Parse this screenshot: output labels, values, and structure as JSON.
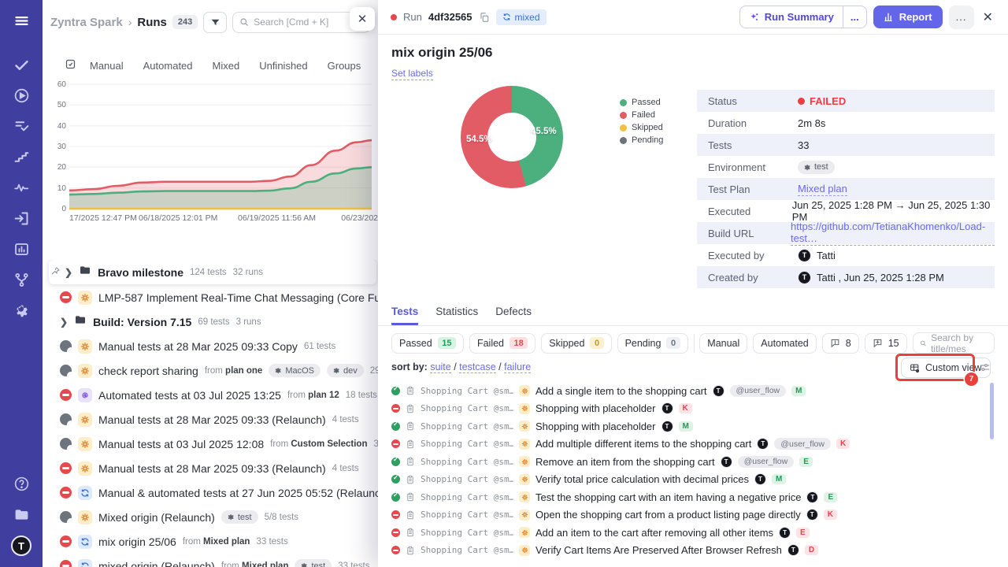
{
  "sidebar": {
    "icons": [
      "menu-icon",
      "checks-icon",
      "run-play-icon",
      "test-list-icon",
      "steps-icon",
      "activity-icon",
      "sign-in-icon",
      "reports-icon",
      "branch-icon",
      "gear-icon"
    ],
    "bottom_icons": [
      "help-icon",
      "folder-icon"
    ],
    "avatar_letter": "T"
  },
  "left_panel": {
    "breadcrumb": {
      "app": "Zyntra Spark",
      "separator": "›",
      "page": "Runs",
      "count": "243"
    },
    "search": {
      "placeholder": "Search [Cmd + K]"
    },
    "close_label": "✕",
    "tabs": [
      "Manual",
      "Automated",
      "Mixed",
      "Unfinished",
      "Groups"
    ],
    "tab_badge": "tes",
    "chart_data": {
      "type": "area",
      "title": "",
      "xlabel": "",
      "ylabel": "",
      "ylim": [
        0,
        62
      ],
      "y_ticks": [
        0,
        10,
        20,
        30,
        40,
        50,
        60
      ],
      "x_ticks": [
        "17/2025 12:47 PM",
        "06/18/2025 12:01 PM",
        "06/19/2025 11:56 AM",
        "06/23/202"
      ],
      "grid": true,
      "series": [
        {
          "name": "total-failed",
          "color": "#e25c66",
          "fill": "rgba(226,92,102,0.22)",
          "points": [
            [
              0,
              8.8
            ],
            [
              0.08,
              9.4
            ],
            [
              0.16,
              11
            ],
            [
              0.24,
              12.6
            ],
            [
              0.32,
              13
            ],
            [
              0.42,
              13
            ],
            [
              0.52,
              13
            ],
            [
              0.6,
              13
            ],
            [
              0.66,
              13.4
            ],
            [
              0.73,
              15.5
            ],
            [
              0.8,
              21
            ],
            [
              0.88,
              28
            ],
            [
              0.95,
              32
            ],
            [
              1,
              33
            ]
          ]
        },
        {
          "name": "passed",
          "color": "#4caf7d",
          "fill": "rgba(76,175,125,0.25)",
          "points": [
            [
              0,
              6.8
            ],
            [
              0.08,
              7.1
            ],
            [
              0.16,
              7.7
            ],
            [
              0.24,
              8.3
            ],
            [
              0.32,
              8.5
            ],
            [
              0.42,
              8.5
            ],
            [
              0.52,
              8.5
            ],
            [
              0.6,
              8.5
            ],
            [
              0.66,
              8.7
            ],
            [
              0.73,
              9.8
            ],
            [
              0.8,
              13
            ],
            [
              0.88,
              17
            ],
            [
              0.95,
              19.4
            ],
            [
              1,
              20
            ]
          ]
        },
        {
          "name": "skipped",
          "color": "#f0c042",
          "fill": "none",
          "points": [
            [
              0,
              0
            ],
            [
              1,
              0
            ]
          ]
        }
      ]
    },
    "runs": [
      {
        "folder": true,
        "pinned": true,
        "card": true,
        "title": "Bravo milestone",
        "meta": [
          "124 tests",
          "32 runs"
        ]
      },
      {
        "status": "failed",
        "type": "manual",
        "title": "LMP-587 Implement Real-Time Chat Messaging (Core Functionality)"
      },
      {
        "folder": true,
        "title": "Build: Version 7.15",
        "meta": [
          "69 tests",
          "3 runs"
        ]
      },
      {
        "status": "aborted",
        "type": "manual",
        "title": "Manual tests at 28 Mar 2025 09:33 Copy",
        "tests": "61 tests"
      },
      {
        "status": "aborted",
        "type": "manual",
        "title": "check report sharing",
        "from": "plan one",
        "badges": [
          "MacOS",
          "dev"
        ],
        "tests": "29 tests"
      },
      {
        "status": "failed",
        "type": "automated",
        "title": "Automated tests at 03 Jul 2025 13:25",
        "from": "plan 12",
        "tests": "18 tests"
      },
      {
        "status": "aborted",
        "type": "manual",
        "title": "Manual tests at 28 Mar 2025 09:33 (Relaunch)",
        "tests": "4 tests"
      },
      {
        "status": "aborted",
        "type": "manual",
        "title": "Manual tests at 03 Jul 2025 12:08",
        "from": "Custom Selection",
        "tests": "3/3 tests"
      },
      {
        "status": "failed",
        "type": "manual",
        "title": "Manual tests at 28 Mar 2025 09:33 (Relaunch)",
        "tests": "4 tests"
      },
      {
        "status": "failed",
        "type": "mixed",
        "title": "Manual & automated tests at 27 Jun 2025 05:52 (Relaunch)",
        "badges": [
          "tes"
        ]
      },
      {
        "status": "aborted",
        "type": "manual",
        "title": "Mixed origin (Relaunch)",
        "badges": [
          "test"
        ],
        "tests": "5/8 tests"
      },
      {
        "status": "failed",
        "type": "mixed",
        "title": "mix origin 25/06",
        "from": "Mixed plan",
        "tests": "33 tests"
      },
      {
        "status": "failed",
        "type": "mixed",
        "title": "mixed origin (Relaunch)",
        "from": "Mixed plan",
        "badges": [
          "test"
        ],
        "tests": "33 tests"
      }
    ]
  },
  "drawer": {
    "header": {
      "run_label": "Run",
      "run_id": "4df32565",
      "type_badge": "mixed",
      "run_summary_label": "Run Summary",
      "report_label": "Report",
      "more_label": "...",
      "close_label": "✕"
    },
    "title": "mix origin 25/06",
    "set_labels": "Set labels",
    "chart_data": {
      "type": "pie",
      "title": "",
      "slices": [
        {
          "label": "Passed",
          "value": 45.5,
          "display": "45.5%",
          "color": "#4caf7e"
        },
        {
          "label": "Failed",
          "value": 54.5,
          "display": "54.5%",
          "color": "#e25c66"
        }
      ],
      "legend": [
        {
          "label": "Passed",
          "color": "#4caf7e"
        },
        {
          "label": "Failed",
          "color": "#e25c66"
        },
        {
          "label": "Skipped",
          "color": "#f0c042"
        },
        {
          "label": "Pending",
          "color": "#6e747e"
        }
      ],
      "legend_position": "right"
    },
    "details": [
      {
        "label": "Status",
        "kind": "status",
        "value": "FAILED"
      },
      {
        "label": "Duration",
        "kind": "text",
        "value": "2m 8s"
      },
      {
        "label": "Tests",
        "kind": "text",
        "value": "33"
      },
      {
        "label": "Environment",
        "kind": "badge",
        "value": "test"
      },
      {
        "label": "Test Plan",
        "kind": "link",
        "value": "Mixed plan"
      },
      {
        "label": "Executed",
        "kind": "text",
        "value": "Jun 25, 2025 1:28 PM → Jun 25, 2025 1:30 PM"
      },
      {
        "label": "Build URL",
        "kind": "link",
        "value": "https://github.com/TetianaKhomenko/Load-test…"
      },
      {
        "label": "Executed by",
        "kind": "user",
        "value": "Tatti"
      },
      {
        "label": "Created by",
        "kind": "user",
        "value": "Tatti , Jun 25, 2025 1:28 PM"
      }
    ],
    "tabs": [
      {
        "label": "Tests",
        "active": true
      },
      {
        "label": "Statistics",
        "active": false
      },
      {
        "label": "Defects",
        "active": false
      }
    ],
    "filters": {
      "status_chips": [
        {
          "label": "Passed",
          "count": "15",
          "color": "green"
        },
        {
          "label": "Failed",
          "count": "18",
          "color": "red"
        },
        {
          "label": "Skipped",
          "count": "0",
          "color": "yellow"
        },
        {
          "label": "Pending",
          "count": "0",
          "color": "gray"
        }
      ],
      "type_chips": [
        "Manual",
        "Automated"
      ],
      "bubble_chips": [
        {
          "icon": "comment-exclamation-icon",
          "count": "8"
        },
        {
          "icon": "comment-plus-icon",
          "count": "15"
        }
      ],
      "search_placeholder": "Search by title/mes"
    },
    "sort": {
      "label": "sort by:",
      "options": [
        "suite",
        "testcase",
        "failure"
      ],
      "separator": "/"
    },
    "custom_view_label": "Custom view",
    "tests": [
      {
        "status": "passed",
        "suite": "Shopping Cart @sm…",
        "title": "Add a single item to the shopping cart",
        "user_flow": "@user_flow",
        "letter": "M",
        "letter_color": "green"
      },
      {
        "status": "failed",
        "suite": "Shopping Cart @sm…",
        "title": "Shopping with placeholder",
        "letter": "K",
        "letter_color": "red"
      },
      {
        "status": "passed",
        "suite": "Shopping Cart @sm…",
        "title": "Shopping with placeholder",
        "letter": "M",
        "letter_color": "green"
      },
      {
        "status": "failed",
        "suite": "Shopping Cart @sm…",
        "title": "Add multiple different items to the shopping cart",
        "user_flow": "@user_flow",
        "letter": "K",
        "letter_color": "red"
      },
      {
        "status": "passed",
        "suite": "Shopping Cart @sm…",
        "title": "Remove an item from the shopping cart",
        "user_flow": "@user_flow",
        "letter": "E",
        "letter_color": "green"
      },
      {
        "status": "passed",
        "suite": "Shopping Cart @sm…",
        "title": "Verify total price calculation with decimal prices",
        "letter": "M",
        "letter_color": "green"
      },
      {
        "status": "passed",
        "suite": "Shopping Cart @sm…",
        "title": "Test the shopping cart with an item having a negative price",
        "letter": "E",
        "letter_color": "green"
      },
      {
        "status": "failed",
        "suite": "Shopping Cart @sm…",
        "title": "Open the shopping cart from a product listing page directly",
        "letter": "K",
        "letter_color": "red"
      },
      {
        "status": "failed",
        "suite": "Shopping Cart @sm…",
        "title": "Add an item to the cart after removing all other items",
        "letter": "E",
        "letter_color": "red"
      },
      {
        "status": "failed",
        "suite": "Shopping Cart @sm…",
        "title": "Verify Cart Items Are Preserved After Browser Refresh",
        "letter": "D",
        "letter_color": "red"
      }
    ]
  },
  "annotation": {
    "number": "7"
  }
}
